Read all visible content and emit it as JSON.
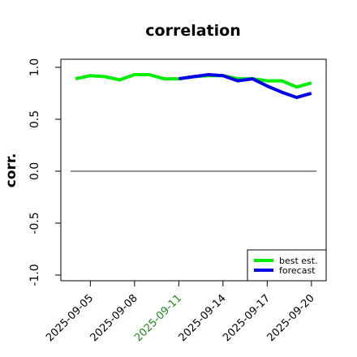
{
  "chart_data": {
    "type": "line",
    "title": "correlation",
    "ylabel": "corr.",
    "xlabel": "",
    "ylim": [
      -1.0,
      1.0
    ],
    "yticks": [
      -1.0,
      -0.5,
      0.0,
      0.5,
      1.0
    ],
    "ytick_labels": [
      "-1.0",
      "-0.5",
      "0.0",
      "0.5",
      "1.0"
    ],
    "x_dates": [
      "2025-09-04",
      "2025-09-05",
      "2025-09-06",
      "2025-09-07",
      "2025-09-08",
      "2025-09-09",
      "2025-09-10",
      "2025-09-11",
      "2025-09-12",
      "2025-09-13",
      "2025-09-14",
      "2025-09-15",
      "2025-09-16",
      "2025-09-17",
      "2025-09-18",
      "2025-09-19",
      "2025-09-20"
    ],
    "xticks": [
      "2025-09-05",
      "2025-09-08",
      "2025-09-11",
      "2025-09-14",
      "2025-09-17",
      "2025-09-20"
    ],
    "xlim": [
      "2025-09-03",
      "2025-09-21"
    ],
    "highlight_tick": "2025-09-11",
    "highlight_color": "#1a8a1a",
    "reference_line": 0.0,
    "series": [
      {
        "name": "best est.",
        "color": "#00ee00",
        "x": [
          "2025-09-04",
          "2025-09-05",
          "2025-09-06",
          "2025-09-07",
          "2025-09-08",
          "2025-09-09",
          "2025-09-10",
          "2025-09-11",
          "2025-09-12",
          "2025-09-13",
          "2025-09-14",
          "2025-09-15",
          "2025-09-16",
          "2025-09-17",
          "2025-09-18",
          "2025-09-19",
          "2025-09-20"
        ],
        "values": [
          0.89,
          0.92,
          0.91,
          0.88,
          0.93,
          0.93,
          0.89,
          0.89,
          0.91,
          0.92,
          0.92,
          0.89,
          0.89,
          0.87,
          0.87,
          0.81,
          0.85
        ]
      },
      {
        "name": "forecast",
        "color": "#0000ee",
        "x": [
          "2025-09-11",
          "2025-09-12",
          "2025-09-13",
          "2025-09-14",
          "2025-09-15",
          "2025-09-16",
          "2025-09-17",
          "2025-09-18",
          "2025-09-19",
          "2025-09-20"
        ],
        "values": [
          0.89,
          0.91,
          0.93,
          0.92,
          0.87,
          0.89,
          0.82,
          0.76,
          0.71,
          0.75
        ]
      }
    ],
    "legend": {
      "position": "bottom-right"
    },
    "grid": false
  }
}
